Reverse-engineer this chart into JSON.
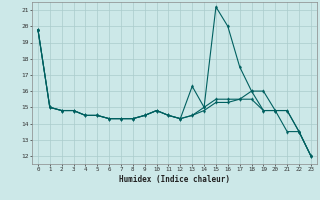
{
  "xlabel": "Humidex (Indice chaleur)",
  "bg_color": "#cce8e8",
  "grid_color": "#aacccc",
  "line_color": "#006060",
  "xlim": [
    -0.5,
    23.5
  ],
  "ylim": [
    11.5,
    21.5
  ],
  "xticks": [
    0,
    1,
    2,
    3,
    4,
    5,
    6,
    7,
    8,
    9,
    10,
    11,
    12,
    13,
    14,
    15,
    16,
    17,
    18,
    19,
    20,
    21,
    22,
    23
  ],
  "yticks": [
    12,
    13,
    14,
    15,
    16,
    17,
    18,
    19,
    20,
    21
  ],
  "series": [
    [
      19.8,
      15.0,
      14.8,
      14.8,
      14.5,
      14.5,
      14.3,
      14.3,
      14.3,
      14.5,
      14.8,
      14.5,
      14.3,
      14.5,
      15.0,
      21.2,
      20.0,
      17.5,
      16.0,
      16.0,
      14.8,
      13.5,
      13.5,
      12.0
    ],
    [
      19.8,
      15.0,
      14.8,
      14.8,
      14.5,
      14.5,
      14.3,
      14.3,
      14.3,
      14.5,
      14.8,
      14.5,
      14.3,
      16.3,
      15.0,
      15.5,
      15.5,
      15.5,
      16.0,
      14.8,
      14.8,
      14.8,
      13.5,
      12.0
    ],
    [
      19.8,
      15.0,
      14.8,
      14.8,
      14.5,
      14.5,
      14.3,
      14.3,
      14.3,
      14.5,
      14.8,
      14.5,
      14.3,
      14.5,
      14.8,
      15.3,
      15.3,
      15.5,
      15.5,
      14.8,
      14.8,
      14.8,
      13.5,
      12.0
    ]
  ]
}
